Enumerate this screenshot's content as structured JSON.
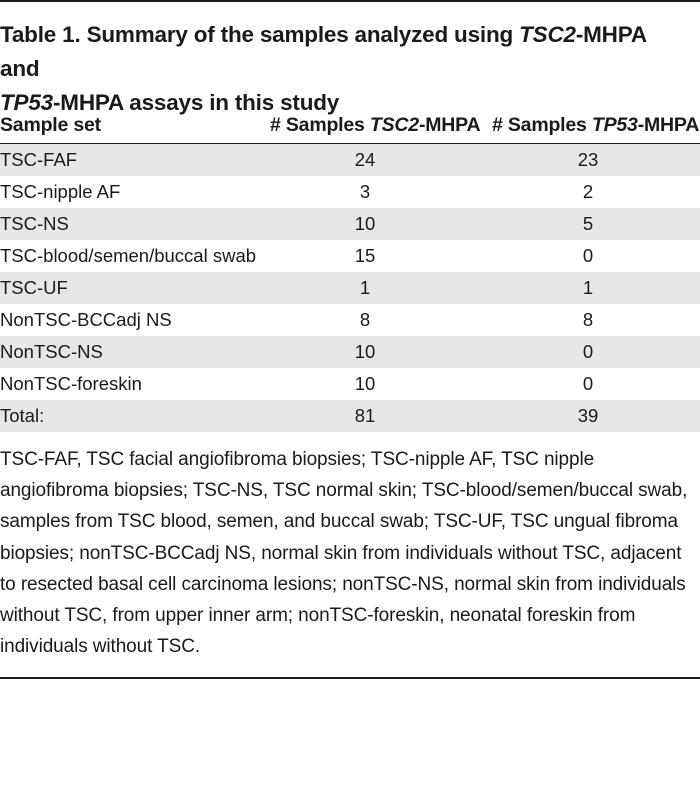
{
  "title": {
    "part1": "Table 1. Summary of the samples analyzed using ",
    "gene1": "TSC2",
    "part2": "-MHPA and ",
    "gene2": "TP53",
    "part3": "-MHPA assays in this study"
  },
  "columns": {
    "col1": "Sample set",
    "col2_prefix": "# Samples ",
    "col2_gene": "TSC2",
    "col2_suffix": "-MHPA",
    "col3_prefix": "# Samples ",
    "col3_gene": "TP53",
    "col3_suffix": "-MHPA"
  },
  "rows": [
    {
      "sample_set": "TSC-FAF",
      "tsc2": "24",
      "tp53": "23"
    },
    {
      "sample_set": "TSC-nipple AF",
      "tsc2": "3",
      "tp53": "2"
    },
    {
      "sample_set": "TSC-NS",
      "tsc2": "10",
      "tp53": "5"
    },
    {
      "sample_set": "TSC-blood/semen/buccal swab",
      "tsc2": "15",
      "tp53": "0"
    },
    {
      "sample_set": "TSC-UF",
      "tsc2": "1",
      "tp53": "1"
    },
    {
      "sample_set": "NonTSC-BCCadj NS",
      "tsc2": "8",
      "tp53": "8"
    },
    {
      "sample_set": "NonTSC-NS",
      "tsc2": "10",
      "tp53": "0"
    },
    {
      "sample_set": "NonTSC-foreskin",
      "tsc2": "10",
      "tp53": "0"
    },
    {
      "sample_set": "Total:",
      "tsc2": "81",
      "tp53": "39"
    }
  ],
  "footnote": "TSC-FAF, TSC facial angiofibroma biopsies; TSC-nipple AF, TSC nipple angiofibroma biopsies; TSC-NS, TSC normal skin; TSC-blood/semen/buccal swab, samples from TSC blood, semen, and buccal swab; TSC-UF, TSC ungual fibroma biopsies; nonTSC-BCCadj NS, normal skin from individuals without TSC, adjacent to resected basal cell carcinoma lesions; nonTSC-NS, normal skin from individuals without TSC, from upper inner arm; nonTSC-foreskin, neonatal foreskin from individuals without TSC.",
  "colors": {
    "text": "#1a1a1a",
    "row_shade": "#e6e7e8"
  }
}
